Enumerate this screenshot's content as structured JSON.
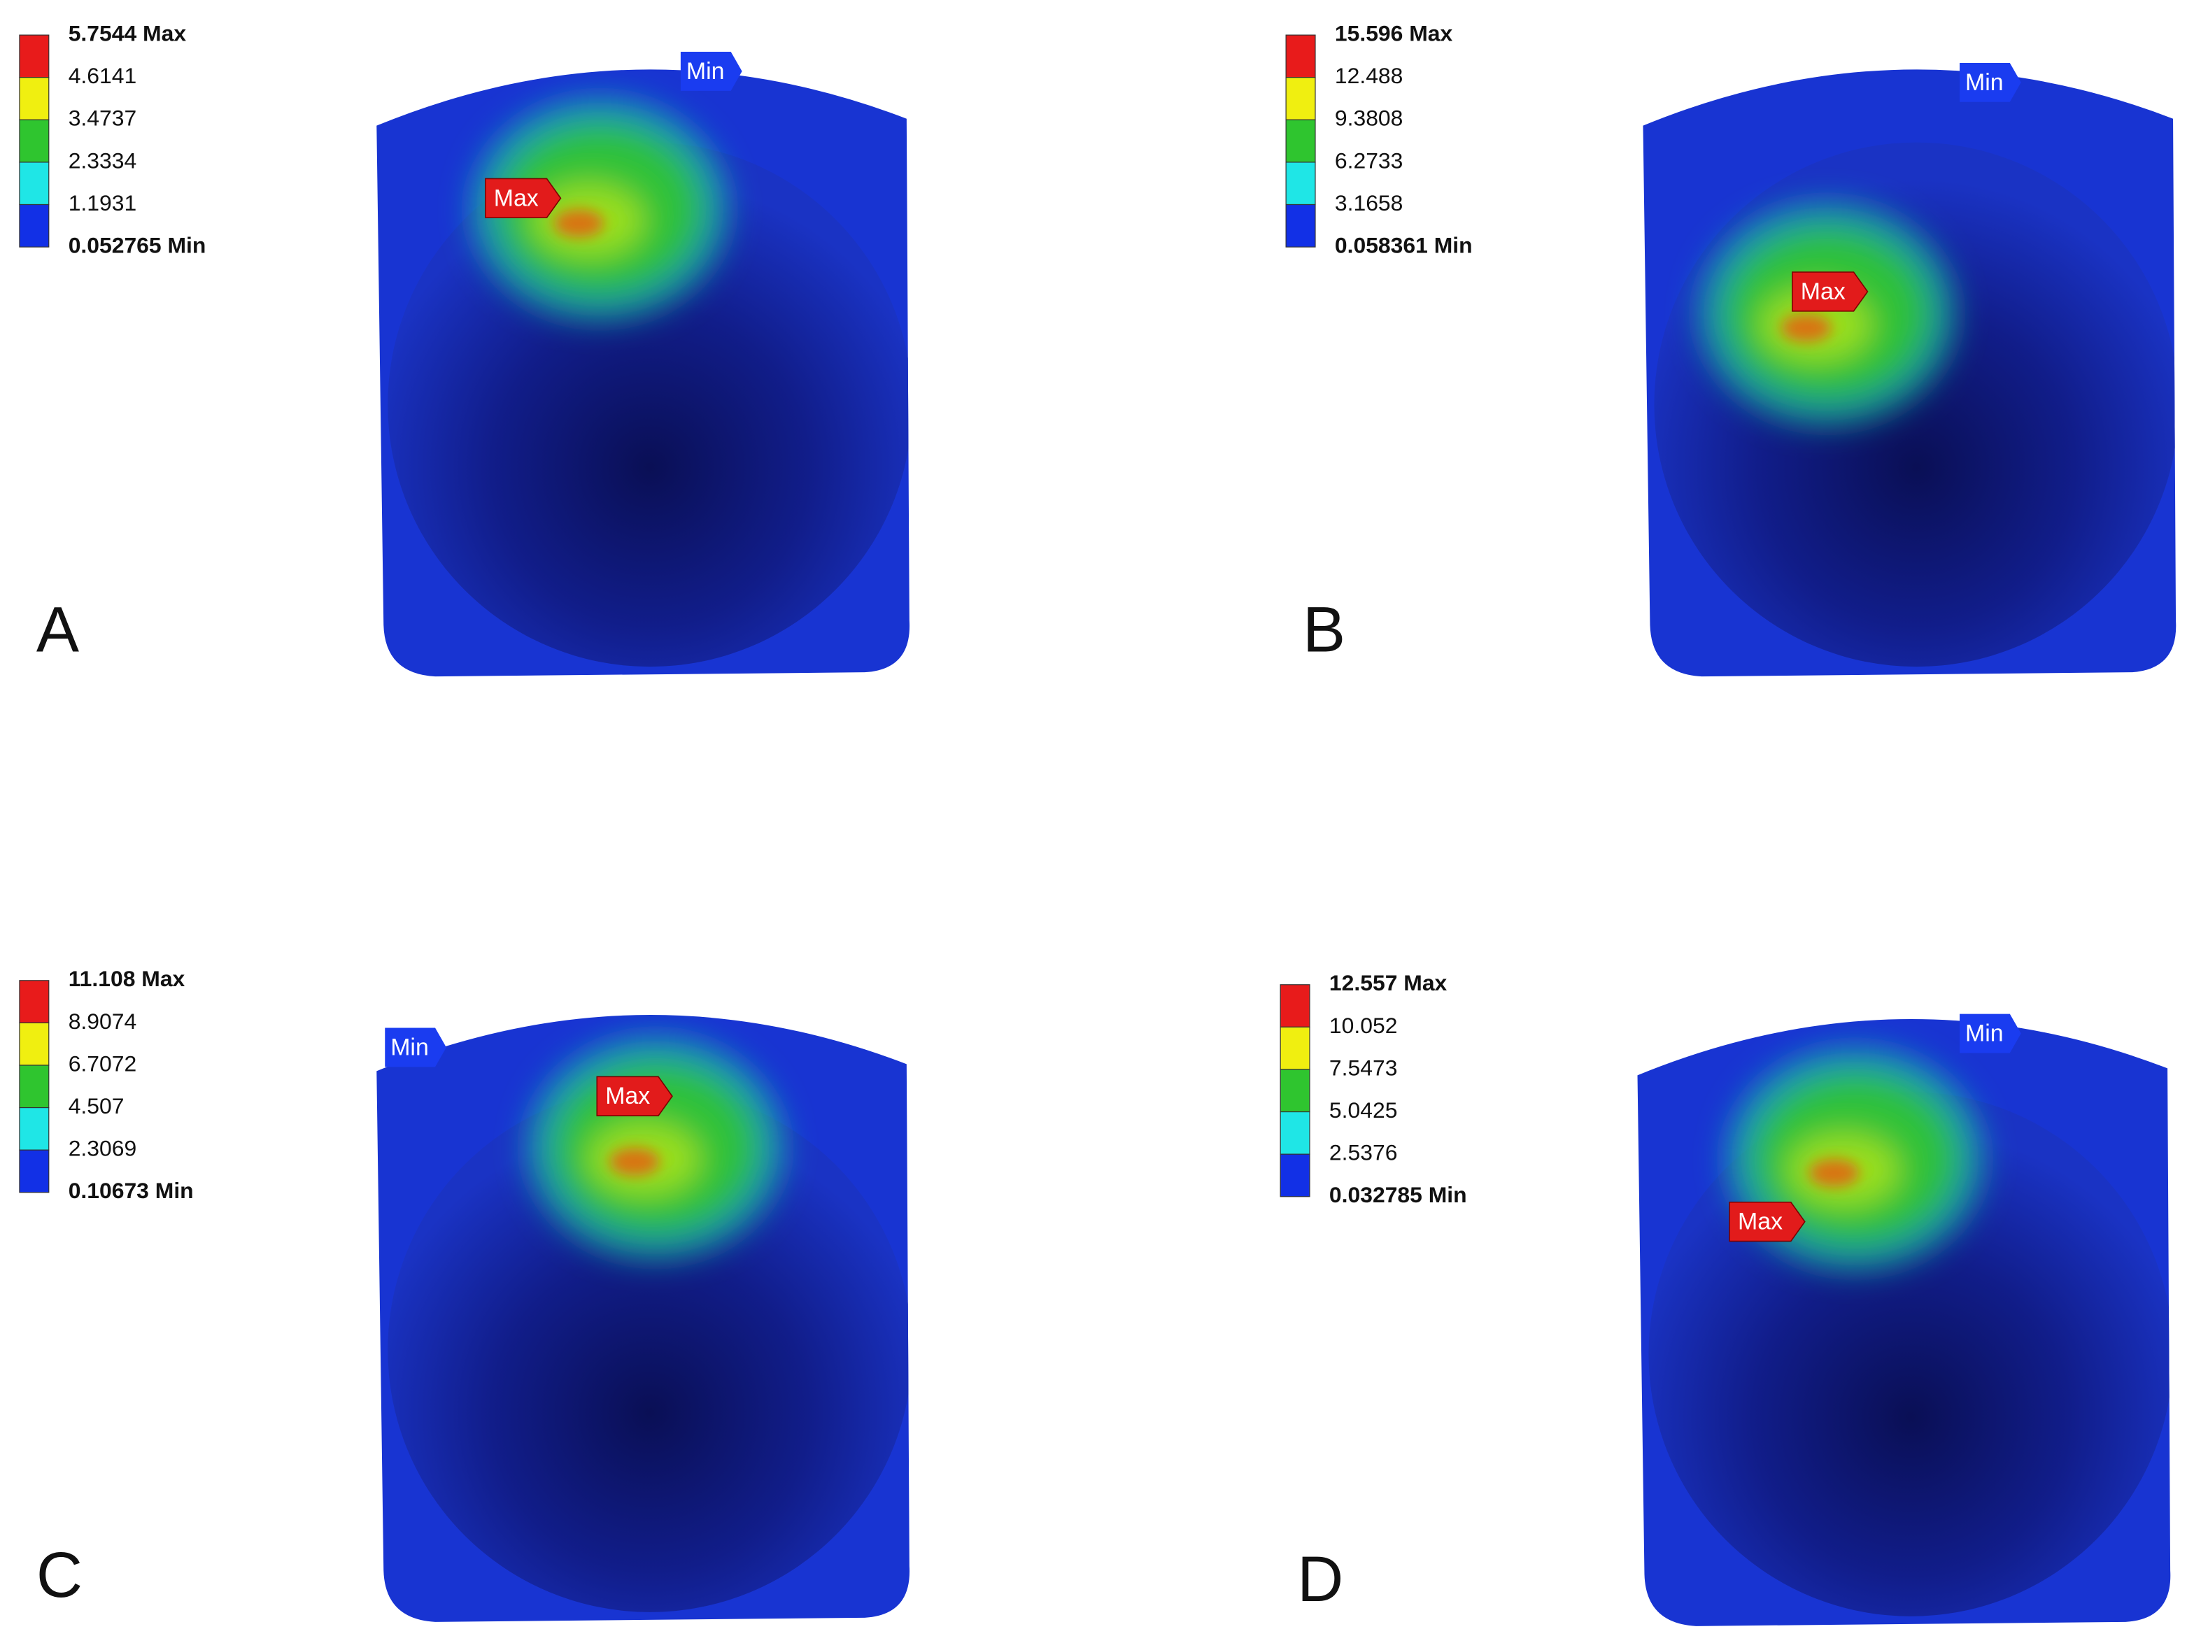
{
  "panels": [
    {
      "label": "A",
      "legend": [
        "5.7544 Max",
        "4.6141",
        "3.4737",
        "2.3334",
        "1.1931",
        "0.052765 Min"
      ],
      "max_tag": "Max",
      "min_tag": "Min"
    },
    {
      "label": "B",
      "legend": [
        "15.596 Max",
        "12.488",
        "9.3808",
        "6.2733",
        "3.1658",
        "0.058361 Min"
      ],
      "max_tag": "Max",
      "min_tag": "Min"
    },
    {
      "label": "C",
      "legend": [
        "11.108 Max",
        "8.9074",
        "6.7072",
        "4.507",
        "2.3069",
        "0.10673 Min"
      ],
      "max_tag": "Max",
      "min_tag": "Min"
    },
    {
      "label": "D",
      "legend": [
        "12.557 Max",
        "10.052",
        "7.5473",
        "5.0425",
        "2.5376",
        "0.032785 Min"
      ],
      "max_tag": "Max",
      "min_tag": "Min"
    }
  ]
}
